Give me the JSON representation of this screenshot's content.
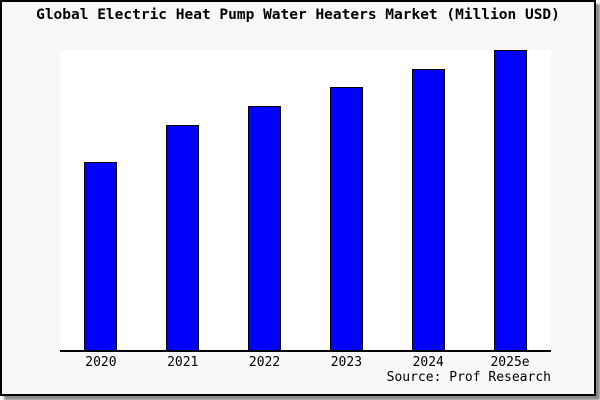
{
  "chart_data": {
    "type": "bar",
    "title": "Global Electric Heat Pump Water Heaters Market (Million USD)",
    "categories": [
      "2020",
      "2021",
      "2022",
      "2023",
      "2024",
      "2025e"
    ],
    "values": [
      62.7,
      75.0,
      81.3,
      87.7,
      93.7,
      100.0
    ],
    "values_note": "y-axis is unlabeled in the chart; values are relative bar heights as % of the tallest (2025e) bar",
    "xlabel": "",
    "ylabel": "",
    "ylim": [
      0,
      100
    ],
    "grid": false,
    "legend": null,
    "source": "Source: Prof Research",
    "bar_color": "#0000ff",
    "bar_border_color": "#000000"
  },
  "colors": {
    "card_background": "#f8f8f8",
    "plot_background": "#ffffff",
    "border": "#000000",
    "shadow": "#8a8a8a",
    "bar_fill": "#0000ff"
  }
}
